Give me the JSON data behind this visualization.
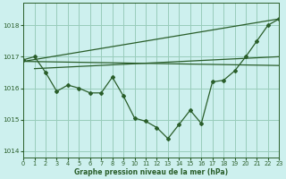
{
  "bg_color": "#cdf0ee",
  "grid_color": "#99ccbb",
  "line_color": "#2a5e2a",
  "xlim": [
    0,
    23
  ],
  "ylim": [
    1013.8,
    1018.7
  ],
  "yticks": [
    1014,
    1015,
    1016,
    1017,
    1018
  ],
  "xticks": [
    0,
    1,
    2,
    3,
    4,
    5,
    6,
    7,
    8,
    9,
    10,
    11,
    12,
    13,
    14,
    15,
    16,
    17,
    18,
    19,
    20,
    21,
    22,
    23
  ],
  "xlabel": "Graphe pression niveau de la mer (hPa)",
  "series_main": [
    1016.9,
    1017.0,
    1016.5,
    1015.9,
    1016.1,
    1016.0,
    1015.85,
    1015.85,
    1016.35,
    1015.75,
    1015.05,
    1014.95,
    1014.75,
    1014.4,
    1014.85,
    1015.3,
    1014.88,
    1016.2,
    1016.25,
    1016.55,
    1017.0,
    1017.5,
    1018.0,
    1018.2
  ],
  "series_line1_x": [
    0,
    23
  ],
  "series_line1_y": [
    1016.85,
    1016.72
  ],
  "series_line2_x": [
    0,
    23
  ],
  "series_line2_y": [
    1016.85,
    1018.2
  ],
  "series_line3_x": [
    1,
    23
  ],
  "series_line3_y": [
    1016.62,
    1017.0
  ]
}
